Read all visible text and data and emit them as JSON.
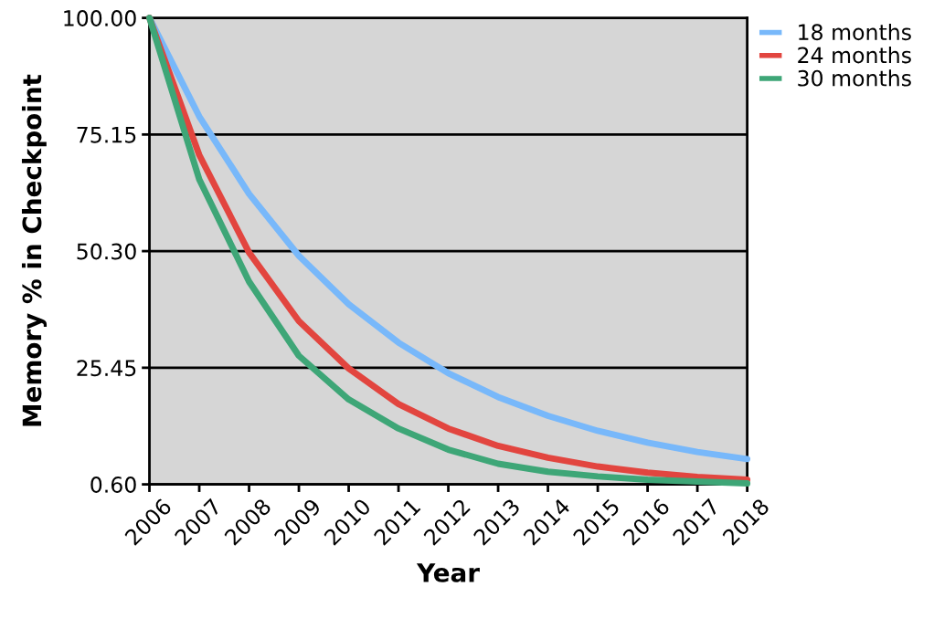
{
  "chart_data": {
    "type": "line",
    "xlabel": "Year",
    "ylabel": "Memory % in Checkpoint",
    "x": [
      2006,
      2007,
      2008,
      2009,
      2010,
      2011,
      2012,
      2013,
      2014,
      2015,
      2016,
      2017,
      2018
    ],
    "series": [
      {
        "name": "18 months",
        "color": "#78b8fa",
        "values": [
          100,
          79,
          62.5,
          49.3,
          39,
          30.8,
          24.3,
          19.2,
          15.2,
          12,
          9.5,
          7.5,
          6
        ]
      },
      {
        "name": "24 months",
        "color": "#e2453f",
        "values": [
          100,
          70.8,
          50,
          35.4,
          25.3,
          17.7,
          12.5,
          8.8,
          6.3,
          4.4,
          3.1,
          2.2,
          1.6
        ]
      },
      {
        "name": "30 months",
        "color": "#3ea677",
        "values": [
          100,
          65.6,
          43.8,
          28,
          18.7,
          12.5,
          8,
          5,
          3.3,
          2.3,
          1.6,
          1.2,
          0.8
        ]
      }
    ],
    "xlim": [
      2006,
      2018
    ],
    "xticks": [
      2006,
      2007,
      2008,
      2009,
      2010,
      2011,
      2012,
      2013,
      2014,
      2015,
      2016,
      2017,
      2018
    ],
    "ylim": [
      0.6,
      100
    ],
    "yticks": [
      {
        "value": 0.6,
        "label": "0.60"
      },
      {
        "value": 25.45,
        "label": "25.45"
      },
      {
        "value": 50.3,
        "label": "50.30"
      },
      {
        "value": 75.15,
        "label": "75.15"
      },
      {
        "value": 100,
        "label": "100.00"
      }
    ],
    "grid": "y",
    "legend": "top right",
    "marker": "none",
    "line_style": "solid"
  }
}
